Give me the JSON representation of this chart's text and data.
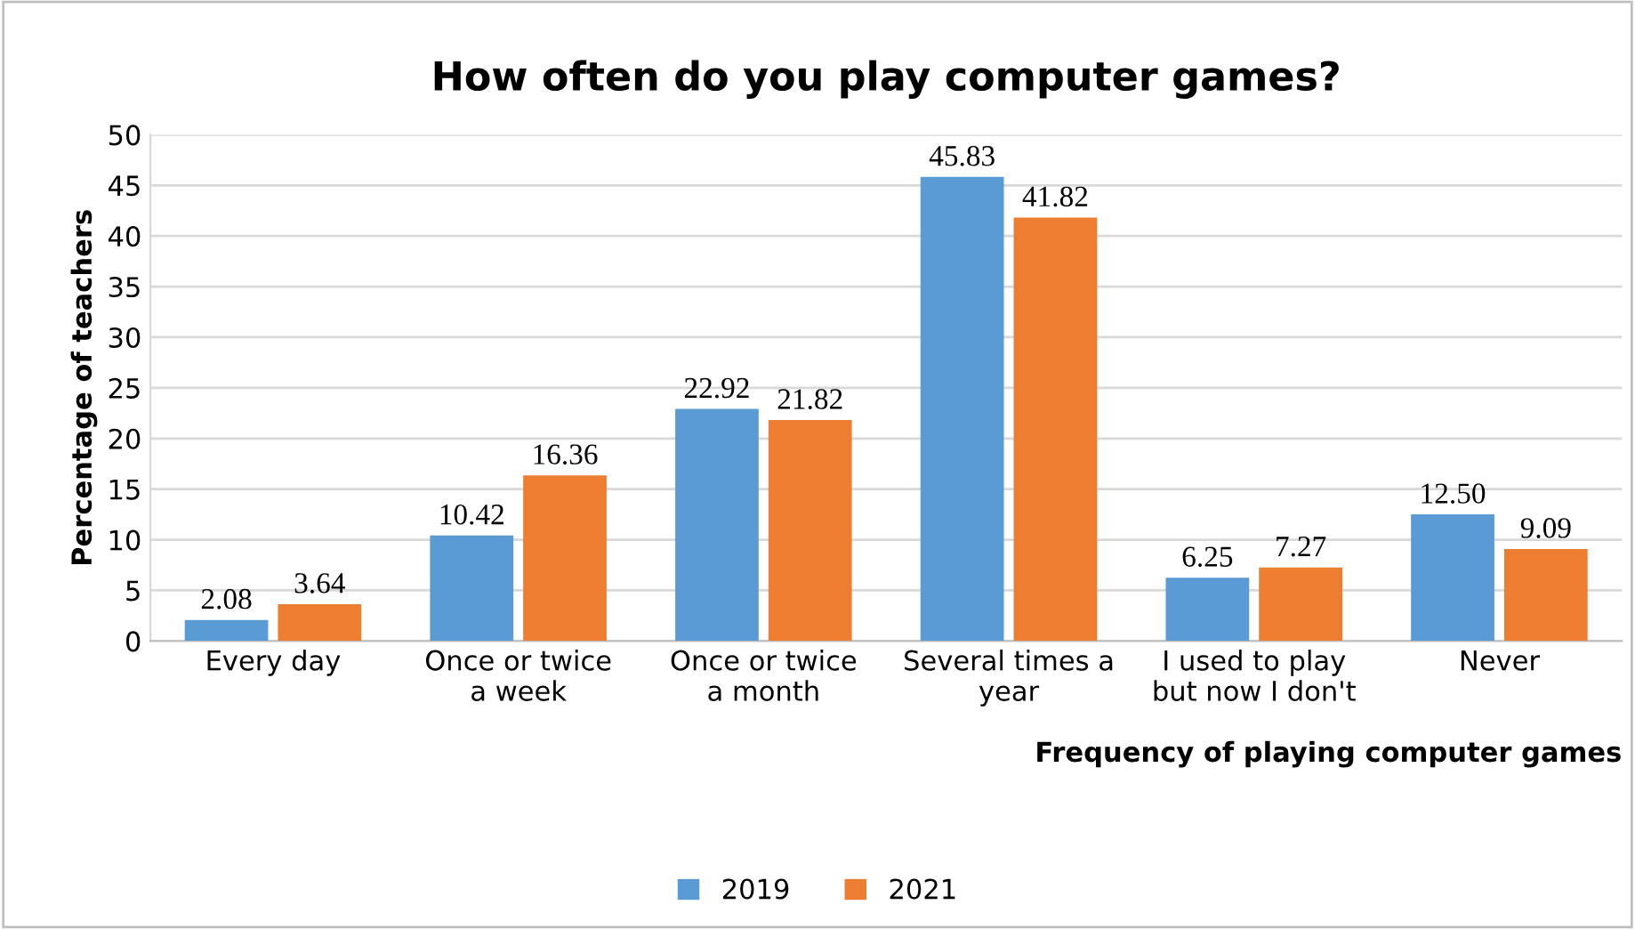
{
  "chart_data": {
    "type": "bar",
    "title": "How often do you play computer games?",
    "xlabel": "Frequency of playing computer games",
    "ylabel": "Percentage of teachers",
    "categories": [
      "Every day",
      "Once or twice\na week",
      "Once or twice\na month",
      "Several times a\nyear",
      "I used to play\nbut now I don't",
      "Never"
    ],
    "series": [
      {
        "name": "2019",
        "color": "#5b9bd5",
        "values": [
          2.08,
          10.42,
          22.92,
          45.83,
          6.25,
          12.5
        ],
        "value_labels": [
          "2.08",
          "10.42",
          "22.92",
          "45.83",
          "6.25",
          "12.50"
        ]
      },
      {
        "name": "2021",
        "color": "#ed7d31",
        "values": [
          3.64,
          16.36,
          21.82,
          41.82,
          7.27,
          9.09
        ],
        "value_labels": [
          "3.64",
          "16.36",
          "21.82",
          "41.82",
          "7.27",
          "9.09"
        ]
      }
    ],
    "ylim": [
      0,
      50
    ],
    "yticks": [
      0,
      5,
      10,
      15,
      20,
      25,
      30,
      35,
      40,
      45,
      50
    ],
    "grid": "y",
    "legend": "bottom"
  }
}
